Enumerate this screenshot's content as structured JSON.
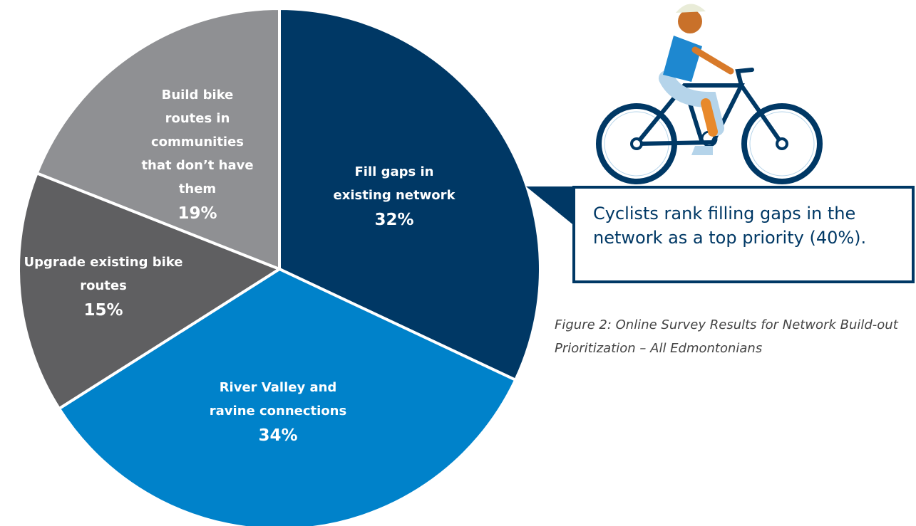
{
  "chart_data": {
    "type": "pie",
    "categories": [
      "Fill gaps in existing network",
      "River Valley and ravine connections",
      "Upgrade existing bike routes",
      "Build bike routes in communities that don’t have them"
    ],
    "values": [
      32,
      34,
      15,
      19
    ],
    "value_labels": [
      "32%",
      "34%",
      "15%",
      "19%"
    ],
    "colors": [
      "#003865",
      "#0082ca",
      "#5f5f61",
      "#8f9093"
    ],
    "annotation": "Cyclists rank filling gaps in the network as a top priority (40%).",
    "caption": "Figure 2: Online Survey Results for Network Build-out Prioritization – All Edmontonians"
  }
}
